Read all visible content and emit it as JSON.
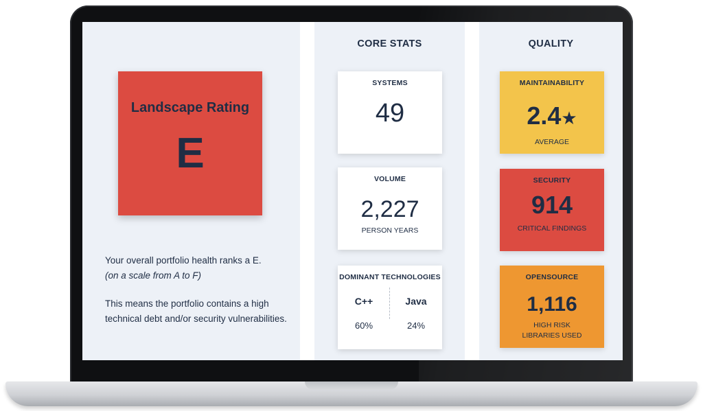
{
  "landscape": {
    "title": "Landscape Rating",
    "rating": "E",
    "description_line1": "Your overall portfolio health ranks a E.",
    "description_line2": "(on a scale from A to F)",
    "description_para2": "This means the portfolio contains a high technical debt and/or security vulnerabilities."
  },
  "core_stats": {
    "heading": "CORE STATS",
    "systems": {
      "title": "SYSTEMS",
      "value": "49"
    },
    "volume": {
      "title": "VOLUME",
      "value": "2,227",
      "unit": "PERSON YEARS"
    },
    "technologies": {
      "title": "DOMINANT TECHNOLOGIES",
      "items": [
        {
          "name": "C++",
          "percent": "60%"
        },
        {
          "name": "Java",
          "percent": "24%"
        }
      ]
    }
  },
  "quality": {
    "heading": "QUALITY",
    "maintainability": {
      "title": "MAINTAINABILITY",
      "value": "2.4",
      "icon": "star-icon",
      "label": "AVERAGE"
    },
    "security": {
      "title": "SECURITY",
      "value": "914",
      "label": "CRITICAL FINDINGS"
    },
    "opensource": {
      "title": "OPENSOURCE",
      "value": "1,116",
      "label_line1": "HIGH RISK",
      "label_line2": "LIBRARIES USED"
    }
  },
  "colors": {
    "rating_red": "#dc4b41",
    "maintainability_yellow": "#f3c44b",
    "security_red": "#dc4b41",
    "opensource_orange": "#ee9731",
    "text_navy": "#1f2d44",
    "panel_bg": "#edf1f7"
  }
}
